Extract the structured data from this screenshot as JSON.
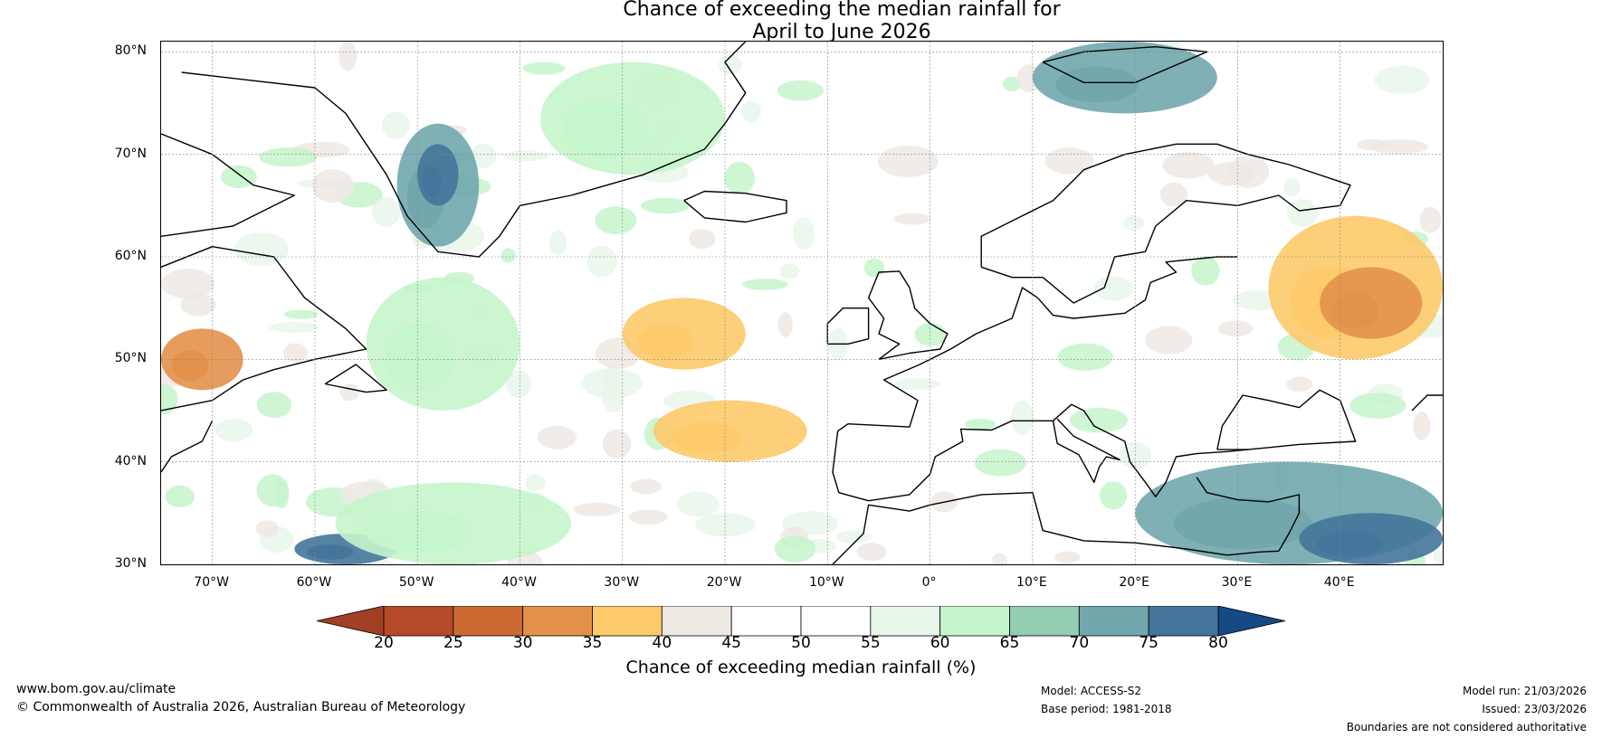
{
  "title": {
    "line1": "Chance of exceeding the median rainfall for",
    "line2": "April to June 2026"
  },
  "map": {
    "lat_range": [
      30,
      81
    ],
    "lon_range": [
      -75,
      50
    ],
    "lat_labels": [
      "80°N",
      "70°N",
      "60°N",
      "50°N",
      "40°N",
      "30°N"
    ],
    "lat_values": [
      80,
      70,
      60,
      50,
      40,
      30
    ],
    "lon_labels": [
      "70°W",
      "60°W",
      "50°W",
      "40°W",
      "30°W",
      "20°W",
      "10°W",
      "0°",
      "10°E",
      "20°E",
      "30°E",
      "40°E"
    ],
    "lon_values": [
      -70,
      -60,
      -50,
      -40,
      -30,
      -20,
      -10,
      0,
      10,
      20,
      30,
      40
    ],
    "anomaly_regions": [
      {
        "name": "eastern-europe-russia",
        "lon": [
          33,
          50
        ],
        "lat": [
          50,
          64
        ],
        "category": "35-40"
      },
      {
        "name": "russia-core",
        "lon": [
          38,
          48
        ],
        "lat": [
          52,
          59
        ],
        "category": "30-35"
      },
      {
        "name": "mid-atlantic",
        "lon": [
          -30,
          -18
        ],
        "lat": [
          49,
          56
        ],
        "category": "35-40"
      },
      {
        "name": "atlantic-azores",
        "lon": [
          -27,
          -12
        ],
        "lat": [
          40,
          46
        ],
        "category": "35-40"
      },
      {
        "name": "newfoundland-south",
        "lon": [
          -75,
          -67
        ],
        "lat": [
          47,
          53
        ],
        "category": "30-35"
      },
      {
        "name": "greenland-east",
        "lon": [
          -52,
          -44
        ],
        "lat": [
          61,
          73
        ],
        "category": "70-75"
      },
      {
        "name": "greenland-coast",
        "lon": [
          -50,
          -46
        ],
        "lat": [
          65,
          71
        ],
        "category": "75-80"
      },
      {
        "name": "arctic-norway-sea",
        "lon": [
          -38,
          -20
        ],
        "lat": [
          68,
          79
        ],
        "category": "60-65"
      },
      {
        "name": "svalbard",
        "lon": [
          10,
          28
        ],
        "lat": [
          74,
          81
        ],
        "category": "70-75"
      },
      {
        "name": "eastern-med",
        "lon": [
          20,
          50
        ],
        "lat": [
          30,
          40
        ],
        "category": "70-75"
      },
      {
        "name": "east-med-core",
        "lon": [
          36,
          50
        ],
        "lat": [
          30,
          35
        ],
        "category": "75-80"
      },
      {
        "name": "west-atlantic-south",
        "lon": [
          -62,
          -52
        ],
        "lat": [
          30,
          33
        ],
        "category": "75-80"
      },
      {
        "name": "labrador-sea",
        "lon": [
          -55,
          -40
        ],
        "lat": [
          45,
          58
        ],
        "category": "60-65"
      },
      {
        "name": "atlantic-south-green",
        "lon": [
          -58,
          -35
        ],
        "lat": [
          30,
          38
        ],
        "category": "60-65"
      }
    ]
  },
  "colorbar": {
    "ticks": [
      "20",
      "25",
      "30",
      "35",
      "40",
      "45",
      "50",
      "55",
      "60",
      "65",
      "70",
      "75",
      "80"
    ],
    "bounds": [
      20,
      25,
      30,
      35,
      40,
      45,
      50,
      55,
      60,
      65,
      70,
      75,
      80
    ],
    "colors": [
      "#b5492a",
      "#cc6a34",
      "#e3914a",
      "#fdca6a",
      "#efe9e4",
      "#ffffff",
      "#ffffff",
      "#e9f6ea",
      "#c5f5cb",
      "#95cdb2",
      "#71a7ad",
      "#44759a"
    ],
    "under_color": "#a13f24",
    "over_color": "#164a84",
    "label": "Chance of exceeding median rainfall (%)"
  },
  "footer": {
    "website": "www.bom.gov.au/climate",
    "copyright": "© Commonwealth of Australia 2026, Australian Bureau of Meteorology",
    "model": "Model: ACCESS-S2",
    "base_period": "Base period: 1981-2018",
    "model_run": "Model run: 21/03/2026",
    "issued": "Issued: 23/03/2026",
    "disclaimer": "Boundaries are not considered authoritative"
  }
}
